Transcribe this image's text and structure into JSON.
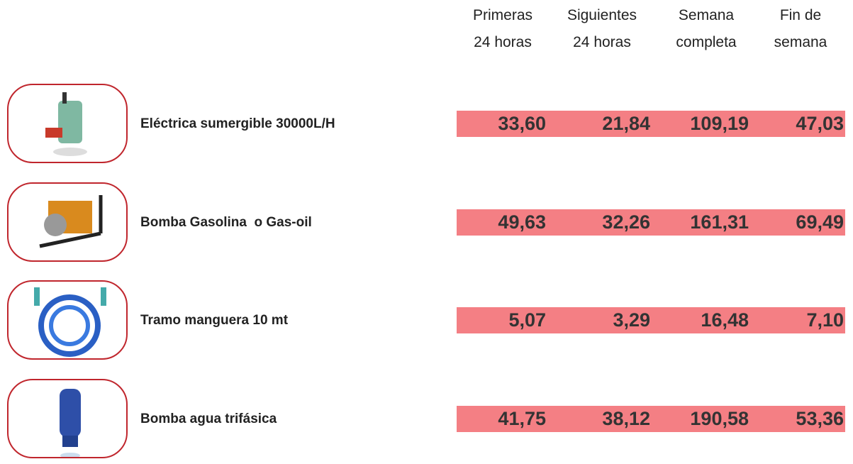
{
  "header": {
    "columns": [
      [
        "Primeras",
        "24 horas"
      ],
      [
        "Siguientes",
        "24 horas"
      ],
      [
        "Semana",
        "completa"
      ],
      [
        "Fin de",
        "semana"
      ]
    ]
  },
  "table": {
    "rows": [
      {
        "name": "Eléctrica sumergible 30000L/H",
        "prices": [
          "33,60",
          "21,84",
          "109,19",
          "47,03"
        ]
      },
      {
        "name": "Bomba Gasolina  o Gas-oil",
        "prices": [
          "49,63",
          "32,26",
          "161,31",
          "69,49"
        ]
      },
      {
        "name": "Tramo manguera 10 mt",
        "prices": [
          "5,07",
          "3,29",
          "16,48",
          "7,10"
        ]
      },
      {
        "name": "Bomba agua trifásica",
        "prices": [
          "41,75",
          "38,12",
          "190,58",
          "53,36"
        ]
      }
    ]
  }
}
